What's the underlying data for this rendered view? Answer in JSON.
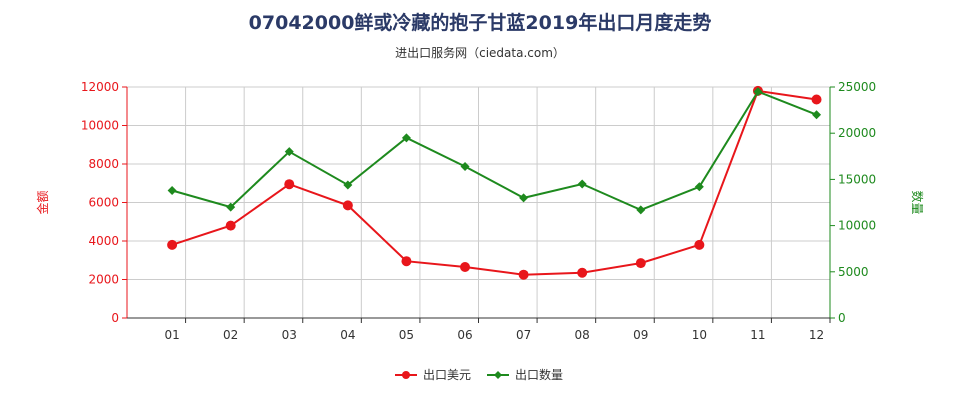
{
  "header": {
    "title": "07042000鲜或冷藏的抱子甘蓝2019年出口月度走势",
    "subtitle": "进出口服务网（ciedata.com）"
  },
  "colors": {
    "left_axis": "#e8161b",
    "right_axis": "#1e8a1e",
    "grid": "#cccccc"
  },
  "chart_data": {
    "type": "line",
    "categories": [
      "01",
      "02",
      "03",
      "04",
      "05",
      "06",
      "07",
      "08",
      "09",
      "10",
      "11",
      "12"
    ],
    "left_axis": {
      "label": "金额",
      "ylim": [
        0,
        12000
      ],
      "ticks": [
        "0",
        "2000",
        "4000",
        "6000",
        "8000",
        "10000",
        "12000"
      ]
    },
    "right_axis": {
      "label": "数量",
      "ylim": [
        0,
        25000
      ],
      "ticks": [
        "0",
        "5000",
        "10000",
        "15000",
        "20000",
        "25000"
      ]
    },
    "series": [
      {
        "name": "出口美元",
        "axis": "left",
        "color": "#e8161b",
        "values": [
          3800,
          4800,
          6950,
          5850,
          2950,
          2650,
          2250,
          2350,
          2850,
          3800,
          11800,
          11350
        ]
      },
      {
        "name": "出口数量",
        "axis": "right",
        "color": "#1e8a1e",
        "values": [
          13800,
          12000,
          18000,
          14400,
          19500,
          16400,
          13000,
          14500,
          11700,
          14200,
          24500,
          22000
        ]
      }
    ],
    "grid": true,
    "legend": "bottom-center"
  }
}
